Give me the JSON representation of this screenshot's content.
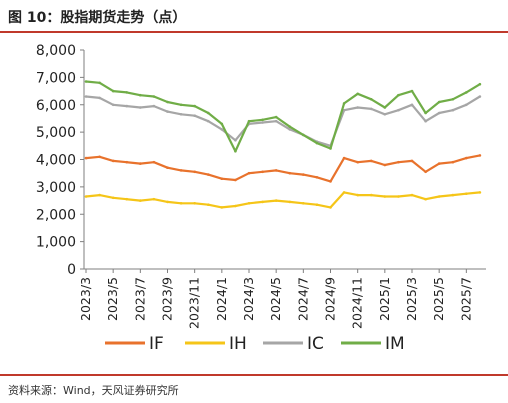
{
  "header": {
    "title": "图 10：股指期货走势（点）"
  },
  "footer": {
    "source": "资料来源：Wind，天风证券研究所"
  },
  "chart_data": {
    "type": "line",
    "ylim": [
      0,
      8000
    ],
    "y_ticks": [
      "0",
      "1,000",
      "2,000",
      "3,000",
      "4,000",
      "5,000",
      "6,000",
      "7,000",
      "8,000"
    ],
    "x_ticks": [
      "2023/3",
      "2023/5",
      "2023/7",
      "2023/9",
      "2023/11",
      "2024/1",
      "2024/3",
      "2024/5",
      "2024/7",
      "2024/9",
      "2024/11",
      "2025/1",
      "2025/3",
      "2025/5",
      "2025/7"
    ],
    "legend_position": "bottom",
    "grid": false,
    "series": [
      {
        "name": "IF",
        "color": "#E8722C",
        "points": [
          [
            "2023/3",
            4050
          ],
          [
            "2023/4",
            4100
          ],
          [
            "2023/5",
            3950
          ],
          [
            "2023/6",
            3900
          ],
          [
            "2023/7",
            3850
          ],
          [
            "2023/8",
            3900
          ],
          [
            "2023/9",
            3700
          ],
          [
            "2023/10",
            3600
          ],
          [
            "2023/11",
            3550
          ],
          [
            "2023/12",
            3450
          ],
          [
            "2024/1",
            3300
          ],
          [
            "2024/2",
            3250
          ],
          [
            "2024/3",
            3500
          ],
          [
            "2024/4",
            3550
          ],
          [
            "2024/5",
            3600
          ],
          [
            "2024/6",
            3500
          ],
          [
            "2024/7",
            3450
          ],
          [
            "2024/8",
            3350
          ],
          [
            "2024/9",
            3200
          ],
          [
            "2024/10",
            4050
          ],
          [
            "2024/11",
            3900
          ],
          [
            "2024/12",
            3950
          ],
          [
            "2025/1",
            3800
          ],
          [
            "2025/2",
            3900
          ],
          [
            "2025/3",
            3950
          ],
          [
            "2025/4",
            3550
          ],
          [
            "2025/5",
            3850
          ],
          [
            "2025/6",
            3900
          ],
          [
            "2025/7",
            4050
          ],
          [
            "2025/8",
            4150
          ]
        ]
      },
      {
        "name": "IH",
        "color": "#F5C518",
        "points": [
          [
            "2023/3",
            2650
          ],
          [
            "2023/4",
            2700
          ],
          [
            "2023/5",
            2600
          ],
          [
            "2023/6",
            2550
          ],
          [
            "2023/7",
            2500
          ],
          [
            "2023/8",
            2550
          ],
          [
            "2023/9",
            2450
          ],
          [
            "2023/10",
            2400
          ],
          [
            "2023/11",
            2400
          ],
          [
            "2023/12",
            2350
          ],
          [
            "2024/1",
            2250
          ],
          [
            "2024/2",
            2300
          ],
          [
            "2024/3",
            2400
          ],
          [
            "2024/4",
            2450
          ],
          [
            "2024/5",
            2500
          ],
          [
            "2024/6",
            2450
          ],
          [
            "2024/7",
            2400
          ],
          [
            "2024/8",
            2350
          ],
          [
            "2024/9",
            2250
          ],
          [
            "2024/10",
            2800
          ],
          [
            "2024/11",
            2700
          ],
          [
            "2024/12",
            2700
          ],
          [
            "2025/1",
            2650
          ],
          [
            "2025/2",
            2650
          ],
          [
            "2025/3",
            2700
          ],
          [
            "2025/4",
            2550
          ],
          [
            "2025/5",
            2650
          ],
          [
            "2025/6",
            2700
          ],
          [
            "2025/7",
            2750
          ],
          [
            "2025/8",
            2800
          ]
        ]
      },
      {
        "name": "IC",
        "color": "#A6A6A6",
        "points": [
          [
            "2023/3",
            6300
          ],
          [
            "2023/4",
            6250
          ],
          [
            "2023/5",
            6000
          ],
          [
            "2023/6",
            5950
          ],
          [
            "2023/7",
            5900
          ],
          [
            "2023/8",
            5950
          ],
          [
            "2023/9",
            5750
          ],
          [
            "2023/10",
            5650
          ],
          [
            "2023/11",
            5600
          ],
          [
            "2023/12",
            5400
          ],
          [
            "2024/1",
            5100
          ],
          [
            "2024/2",
            4700
          ],
          [
            "2024/3",
            5300
          ],
          [
            "2024/4",
            5350
          ],
          [
            "2024/5",
            5400
          ],
          [
            "2024/6",
            5100
          ],
          [
            "2024/7",
            4900
          ],
          [
            "2024/8",
            4650
          ],
          [
            "2024/9",
            4500
          ],
          [
            "2024/10",
            5800
          ],
          [
            "2024/11",
            5900
          ],
          [
            "2024/12",
            5850
          ],
          [
            "2025/1",
            5650
          ],
          [
            "2025/2",
            5800
          ],
          [
            "2025/3",
            6000
          ],
          [
            "2025/4",
            5400
          ],
          [
            "2025/5",
            5700
          ],
          [
            "2025/6",
            5800
          ],
          [
            "2025/7",
            6000
          ],
          [
            "2025/8",
            6300
          ]
        ]
      },
      {
        "name": "IM",
        "color": "#70AD47",
        "points": [
          [
            "2023/3",
            6850
          ],
          [
            "2023/4",
            6800
          ],
          [
            "2023/5",
            6500
          ],
          [
            "2023/6",
            6450
          ],
          [
            "2023/7",
            6350
          ],
          [
            "2023/8",
            6300
          ],
          [
            "2023/9",
            6100
          ],
          [
            "2023/10",
            6000
          ],
          [
            "2023/11",
            5950
          ],
          [
            "2023/12",
            5700
          ],
          [
            "2024/1",
            5300
          ],
          [
            "2024/2",
            4300
          ],
          [
            "2024/3",
            5400
          ],
          [
            "2024/4",
            5450
          ],
          [
            "2024/5",
            5550
          ],
          [
            "2024/6",
            5200
          ],
          [
            "2024/7",
            4900
          ],
          [
            "2024/8",
            4600
          ],
          [
            "2024/9",
            4400
          ],
          [
            "2024/10",
            6050
          ],
          [
            "2024/11",
            6400
          ],
          [
            "2024/12",
            6200
          ],
          [
            "2025/1",
            5900
          ],
          [
            "2025/2",
            6350
          ],
          [
            "2025/3",
            6500
          ],
          [
            "2025/4",
            5700
          ],
          [
            "2025/5",
            6100
          ],
          [
            "2025/6",
            6200
          ],
          [
            "2025/7",
            6450
          ],
          [
            "2025/8",
            6750
          ]
        ]
      }
    ]
  }
}
